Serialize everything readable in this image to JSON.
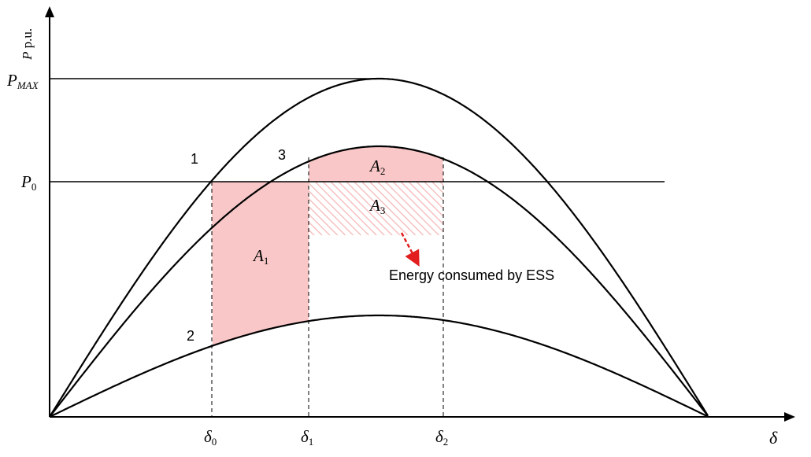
{
  "axes": {
    "y_label_sym": "P",
    "y_label_unit": " p.u.",
    "x_label": "δ",
    "pmax_main": "P",
    "pmax_sub": "MAX",
    "p0_main": "P",
    "p0_sub": "0"
  },
  "curves": {
    "c1_label": "1",
    "c2_label": "2",
    "c3_label": "3"
  },
  "angles": [
    {
      "main": "δ",
      "sub": "0"
    },
    {
      "main": "δ",
      "sub": "1"
    },
    {
      "main": "δ",
      "sub": "2"
    }
  ],
  "areas": {
    "a1_main": "A",
    "a1_sub": "1",
    "a2_main": "A",
    "a2_sub": "2",
    "a3_main": "A",
    "a3_sub": "3"
  },
  "annotation": "Energy consumed by ESS",
  "colors": {
    "area_fill": "#f9c7c7",
    "hatch": "#f5b5b5",
    "arrow": "#e21e1e"
  }
}
